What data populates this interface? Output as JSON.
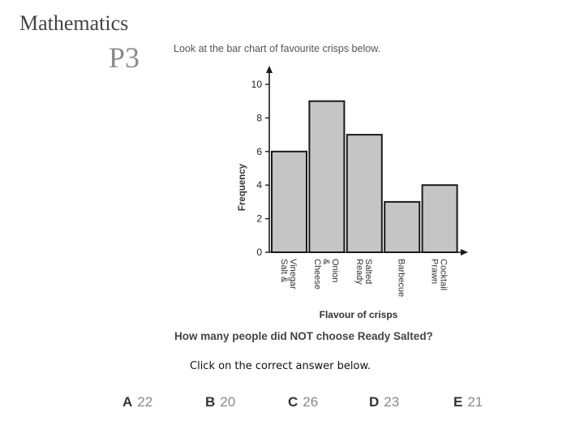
{
  "header": {
    "subject": "Mathematics",
    "level": "P3"
  },
  "prompt": "Look at the bar chart of favourite crisps below.",
  "question": "How many people did NOT choose Ready Salted?",
  "instruction": "Click on the correct answer below.",
  "options": [
    {
      "letter": "A",
      "value": "22"
    },
    {
      "letter": "B",
      "value": "20"
    },
    {
      "letter": "C",
      "value": "26"
    },
    {
      "letter": "D",
      "value": "23"
    },
    {
      "letter": "E",
      "value": "21"
    }
  ],
  "colors": {
    "bar_fill": "#c5c5c5",
    "bar_stroke": "#1a1a1a"
  },
  "chart_data": {
    "type": "bar",
    "categories": [
      [
        "Salt &",
        "Vinegar"
      ],
      [
        "Cheese",
        "&",
        "Onion"
      ],
      [
        "Ready",
        "Salted"
      ],
      [
        "Barbecue"
      ],
      [
        "Prawn",
        "Cocktail"
      ]
    ],
    "values": [
      6,
      9,
      7,
      3,
      4
    ],
    "title": "",
    "xlabel": "Flavour of crisps",
    "ylabel": "Frequency",
    "ylim": [
      0,
      10
    ],
    "yticks": [
      0,
      2,
      4,
      6,
      8,
      10
    ],
    "grid": false
  }
}
